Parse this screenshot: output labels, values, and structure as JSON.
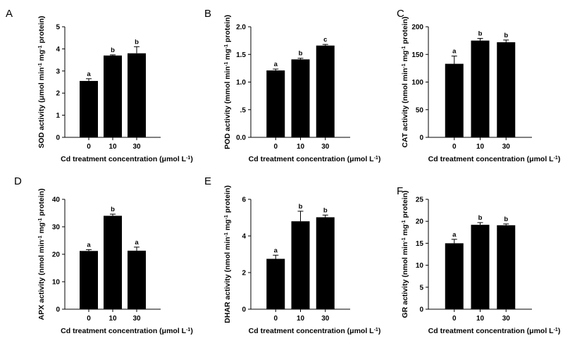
{
  "colors": {
    "bar": "#000000",
    "axis": "#000000",
    "background": "#ffffff"
  },
  "chart_data": [
    {
      "panel": "A",
      "type": "bar",
      "categories": [
        "0",
        "10",
        "30"
      ],
      "values": [
        2.55,
        3.7,
        3.8
      ],
      "errors": [
        0.1,
        0.03,
        0.3
      ],
      "significance": [
        "a",
        "b",
        "b"
      ],
      "ylabel": "SOD activity (μmol min-1 mg-1 protein)",
      "ylabel_parts": [
        "SOD activity (μmol min",
        "-1",
        " mg",
        "-1",
        " protein)"
      ],
      "xlabel_parts": [
        "Cd treatment concentration (μmol L",
        "-1",
        ")"
      ],
      "ylim": [
        0,
        5
      ],
      "yticks": [
        0,
        1,
        2,
        3,
        4,
        5
      ],
      "ytick_labels": [
        "0",
        "1",
        "2",
        "3",
        "4",
        "5"
      ]
    },
    {
      "panel": "B",
      "type": "bar",
      "categories": [
        "0",
        "10",
        "30"
      ],
      "values": [
        1.21,
        1.41,
        1.66
      ],
      "errors": [
        0.025,
        0.02,
        0.02
      ],
      "significance": [
        "a",
        "b",
        "c"
      ],
      "ylabel": "POD activity (mmol min-1 mg-1 protein)",
      "ylabel_parts": [
        "POD activity (mmol min",
        "-1",
        " mg",
        "-1",
        " protein)"
      ],
      "xlabel_parts": [
        "Cd treatment concentration (μmol L",
        "-1",
        ")"
      ],
      "ylim": [
        0,
        2
      ],
      "yticks": [
        0,
        0.5,
        1,
        1.5,
        2
      ],
      "ytick_labels": [
        "0.0",
        ".5",
        "1.0",
        "1.5",
        "2.0"
      ]
    },
    {
      "panel": "C",
      "type": "bar",
      "categories": [
        "0",
        "10",
        "30"
      ],
      "values": [
        133,
        175,
        172
      ],
      "errors": [
        14,
        4,
        4
      ],
      "significance": [
        "a",
        "b",
        "b"
      ],
      "ylabel": "CAT activity (nmol min-1 mg-1 protein)",
      "ylabel_parts": [
        "CAT activity (nmol min",
        "-1",
        " mg",
        "-1",
        " protein)"
      ],
      "xlabel_parts": [
        "Cd treatment concentration (μmol L",
        "-1",
        ")"
      ],
      "ylim": [
        0,
        200
      ],
      "yticks": [
        0,
        50,
        100,
        150,
        200
      ],
      "ytick_labels": [
        "0",
        "50",
        "100",
        "150",
        "200"
      ]
    },
    {
      "panel": "D",
      "type": "bar",
      "categories": [
        "0",
        "10",
        "30"
      ],
      "values": [
        21.2,
        34,
        21.3
      ],
      "errors": [
        0.5,
        0.6,
        1.3
      ],
      "significance": [
        "a",
        "b",
        "a"
      ],
      "ylabel": "APX activity (nmol min-1 mg-1 protein)",
      "ylabel_parts": [
        "APX activity (nmol min",
        "-1",
        " mg",
        "-1",
        " protein)"
      ],
      "xlabel_parts": [
        "Cd treatment concentration (μmol L",
        "-1",
        ")"
      ],
      "ylim": [
        0,
        40
      ],
      "yticks": [
        0,
        10,
        20,
        30,
        40
      ],
      "ytick_labels": [
        "0",
        "10",
        "20",
        "30",
        "40"
      ]
    },
    {
      "panel": "E",
      "type": "bar",
      "categories": [
        "0",
        "10",
        "30"
      ],
      "values": [
        2.75,
        4.8,
        5.02
      ],
      "errors": [
        0.2,
        0.55,
        0.12
      ],
      "significance": [
        "a",
        "b",
        "b"
      ],
      "ylabel": "DHAR activity (nmol min-1 mg-1 protein)",
      "ylabel_parts": [
        "DHAR activity (nmol min",
        "-1",
        " mg",
        "-1",
        " protein)"
      ],
      "xlabel_parts": [
        "Cd treatment concentration (μmol L",
        "-1",
        ")"
      ],
      "ylim": [
        0,
        6
      ],
      "yticks": [
        0,
        2,
        4,
        6
      ],
      "ytick_labels": [
        "0",
        "2",
        "4",
        "6"
      ]
    },
    {
      "panel": "F",
      "type": "bar",
      "categories": [
        "0",
        "10",
        "30"
      ],
      "values": [
        15,
        19.2,
        19.1
      ],
      "errors": [
        0.9,
        0.5,
        0.3
      ],
      "significance": [
        "a",
        "b",
        "b"
      ],
      "ylabel": "GR activity (nmol min-1 mg-1 protein)",
      "ylabel_parts": [
        "GR activity (nmol min",
        "-1",
        " mg",
        "-1",
        " protein)"
      ],
      "xlabel_parts": [
        "Cd treatment concentration (μmol L",
        "-1",
        ")"
      ],
      "ylim": [
        0,
        25
      ],
      "yticks": [
        0,
        5,
        10,
        15,
        20,
        25
      ],
      "ytick_labels": [
        "0",
        "5",
        "10",
        "15",
        "20",
        "25"
      ]
    }
  ]
}
